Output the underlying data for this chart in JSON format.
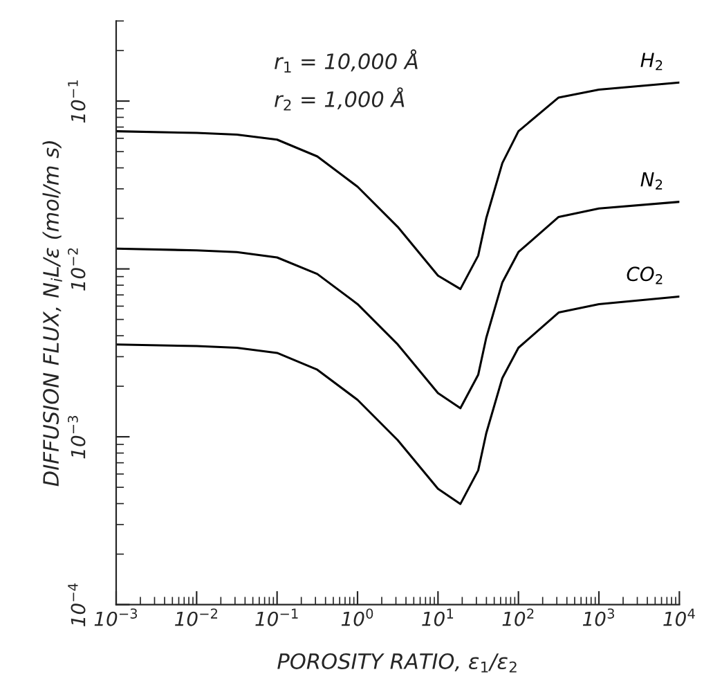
{
  "chart_data": {
    "type": "line",
    "xlabel": "POROSITY RATIO, ε$_{1}$/ε$_{2}$",
    "ylabel": "DIFFUSION FLUX, N$_{i}$L/ε (mol/m s)",
    "annotations": [
      "r$_{1}$ = 10,000 Å",
      "r$_{2}$ = 1,000 Å"
    ],
    "log": "xy",
    "grid": false,
    "legend": false,
    "marker": "none",
    "line_style": "solid",
    "x": [
      0.001,
      0.01,
      0.0316,
      0.1,
      0.316,
      1,
      3.16,
      10,
      19,
      31.6,
      39.8,
      63.1,
      100,
      316,
      1000,
      10000
    ],
    "series": [
      {
        "name": "H$_{2}$",
        "color": "#000000",
        "values": [
          0.0661,
          0.0646,
          0.0631,
          0.0589,
          0.0468,
          0.0309,
          0.0178,
          0.00912,
          0.00759,
          0.012,
          0.02,
          0.0427,
          0.0661,
          0.105,
          0.117,
          0.129
        ]
      },
      {
        "name": "N$_{2}$",
        "color": "#000000",
        "values": [
          0.0132,
          0.0129,
          0.0126,
          0.0117,
          0.00933,
          0.00617,
          0.00355,
          0.00182,
          0.00148,
          0.00234,
          0.00389,
          0.00832,
          0.0126,
          0.0204,
          0.0229,
          0.0251
        ]
      },
      {
        "name": "CO$_{2}$",
        "color": "#000000",
        "values": [
          0.00355,
          0.00347,
          0.00339,
          0.00316,
          0.00251,
          0.00166,
          0.000955,
          0.00049,
          0.000398,
          0.000631,
          0.00105,
          0.00224,
          0.00339,
          0.0055,
          0.00617,
          0.00684
        ]
      }
    ],
    "xlim": [
      0.001,
      10000
    ],
    "ylim": [
      0.0001,
      0.3
    ],
    "xticks": [
      {
        "value": 0.001,
        "label": "10$^{−3}$"
      },
      {
        "value": 0.01,
        "label": "10$^{−2}$"
      },
      {
        "value": 0.1,
        "label": "10$^{−1}$"
      },
      {
        "value": 1,
        "label": "10$^{0}$"
      },
      {
        "value": 10,
        "label": "10$^{1}$"
      },
      {
        "value": 100,
        "label": "10$^{2}$"
      },
      {
        "value": 1000,
        "label": "10$^{3}$"
      },
      {
        "value": 10000,
        "label": "10$^{4}$"
      }
    ],
    "yticks": [
      {
        "value": 0.0001,
        "label": "10$^{−4}$"
      },
      {
        "value": 0.001,
        "label": "10$^{−3}$"
      },
      {
        "value": 0.01,
        "label": "10$^{−2}$"
      },
      {
        "value": 0.1,
        "label": "10$^{−1}$"
      }
    ]
  }
}
